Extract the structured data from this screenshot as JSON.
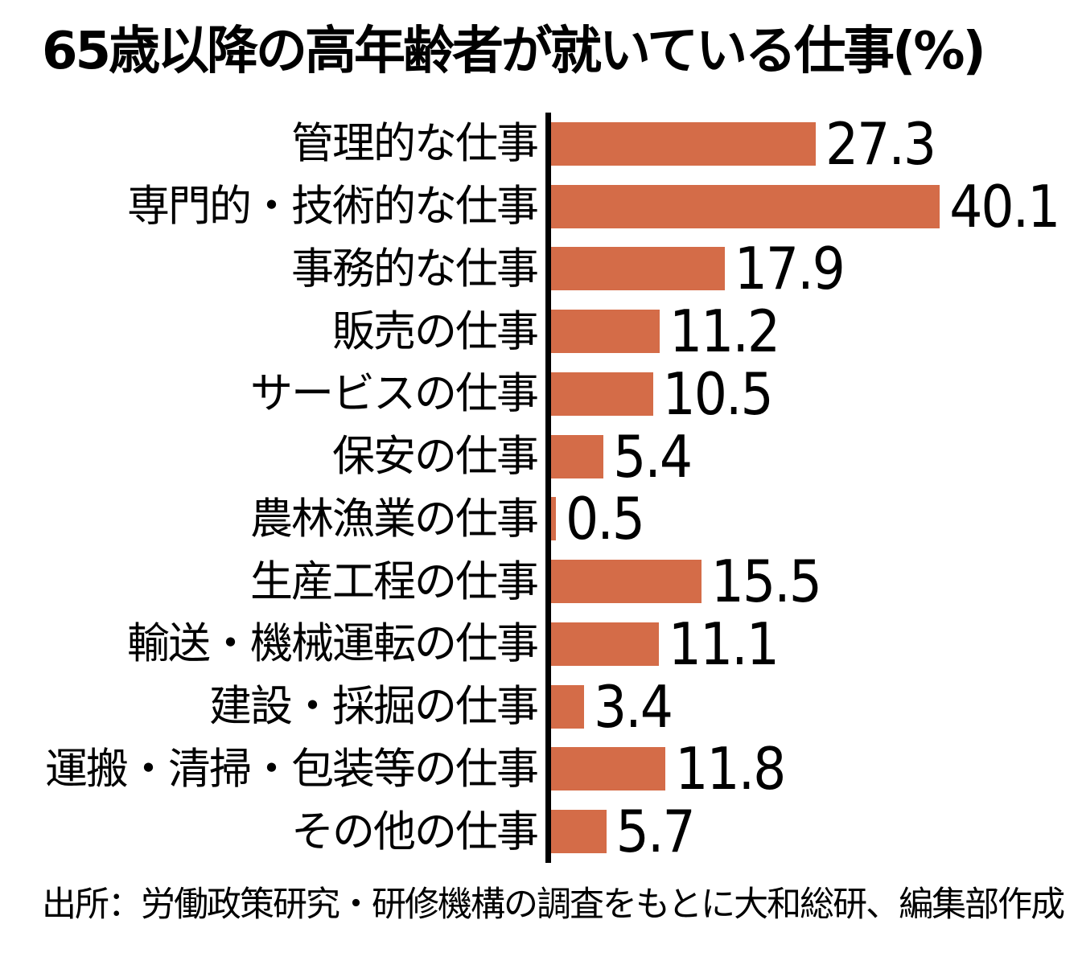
{
  "page": {
    "title": "65歳以降の高年齢者が就いている仕事(%)",
    "source": "出所：労働政策研究・研修機構の調査をもとに大和総研、編集部作成"
  },
  "colors": {
    "bar": "#D46C48",
    "axis": "#000000",
    "text": "#000000",
    "background": "#FFFFFF"
  },
  "chart_data": {
    "type": "bar",
    "orientation": "horizontal",
    "title": "65歳以降の高年齢者が就いている仕事(%)",
    "unit": "%",
    "categories": [
      "管理的な仕事",
      "専門的・技術的な仕事",
      "事務的な仕事",
      "販売の仕事",
      "サービスの仕事",
      "保安の仕事",
      "農林漁業の仕事",
      "生産工程の仕事",
      "輸送・機械運転の仕事",
      "建設・採掘の仕事",
      "運搬・清掃・包装等の仕事",
      "その他の仕事"
    ],
    "values": [
      27.3,
      40.1,
      17.9,
      11.2,
      10.5,
      5.4,
      0.5,
      15.5,
      11.1,
      3.4,
      11.8,
      5.7
    ],
    "value_labels": [
      "27.3",
      "40.1",
      "17.9",
      "11.2",
      "10.5",
      "5.4",
      "0.5",
      "15.5",
      "11.1",
      "3.4",
      "11.8",
      "5.7"
    ],
    "xlim": [
      0,
      54
    ],
    "grid": false,
    "legend": false,
    "value_labels_shown": true,
    "source": "出所：労働政策研究・研修機構の調査をもとに大和総研、編集部作成"
  }
}
